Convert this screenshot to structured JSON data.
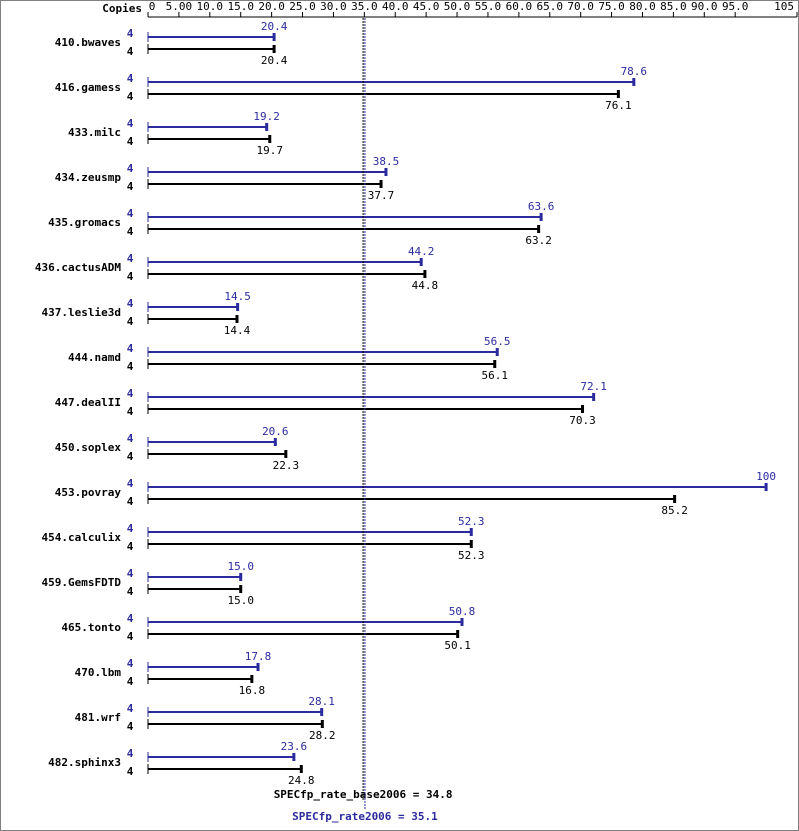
{
  "chart_data": {
    "type": "bar",
    "orientation": "horizontal",
    "x_label": "Copies",
    "categories": [
      "410.bwaves",
      "416.gamess",
      "433.milc",
      "434.zeusmp",
      "435.gromacs",
      "436.cactusADM",
      "437.leslie3d",
      "444.namd",
      "447.dealII",
      "450.soplex",
      "453.povray",
      "454.calculix",
      "459.GemsFDTD",
      "465.tonto",
      "470.lbm",
      "481.wrf",
      "482.sphinx3"
    ],
    "series": [
      {
        "name": "SPECfp_rate2006",
        "color": "#2b2b9e",
        "copies": [
          4,
          4,
          4,
          4,
          4,
          4,
          4,
          4,
          4,
          4,
          4,
          4,
          4,
          4,
          4,
          4,
          4
        ],
        "values": [
          20.4,
          78.6,
          19.2,
          38.5,
          63.6,
          44.2,
          14.5,
          56.5,
          72.1,
          20.6,
          100,
          52.3,
          15.0,
          50.8,
          17.8,
          28.1,
          23.6
        ],
        "value_labels": [
          "20.4",
          "78.6",
          "19.2",
          "38.5",
          "63.6",
          "44.2",
          "14.5",
          "56.5",
          "72.1",
          "20.6",
          "100",
          "52.3",
          "15.0",
          "50.8",
          "17.8",
          "28.1",
          "23.6"
        ]
      },
      {
        "name": "SPECfp_rate_base2006",
        "color": "#000000",
        "copies": [
          4,
          4,
          4,
          4,
          4,
          4,
          4,
          4,
          4,
          4,
          4,
          4,
          4,
          4,
          4,
          4,
          4
        ],
        "values": [
          20.4,
          76.1,
          19.7,
          37.7,
          63.2,
          44.8,
          14.4,
          56.1,
          70.3,
          22.3,
          85.2,
          52.3,
          15.0,
          50.1,
          16.8,
          28.2,
          24.8
        ],
        "value_labels": [
          "20.4",
          "76.1",
          "19.7",
          "37.7",
          "63.2",
          "44.8",
          "14.4",
          "56.1",
          "70.3",
          "22.3",
          "85.2",
          "52.3",
          "15.0",
          "50.1",
          "16.8",
          "28.2",
          "24.8"
        ]
      }
    ],
    "summary": [
      {
        "text": "SPECfp_rate_base2006 = 34.8",
        "value": 34.8,
        "color": "#000000"
      },
      {
        "text": "SPECfp_rate2006 = 35.1",
        "value": 35.1,
        "color": "#2b2b9e"
      }
    ],
    "xlim": [
      0,
      105
    ],
    "xticks": [
      0,
      {
        "value": 5,
        "label": "5.00"
      },
      {
        "value": 10,
        "label": "10.0"
      },
      {
        "value": 15,
        "label": "15.0"
      },
      {
        "value": 20,
        "label": "20.0"
      },
      {
        "value": 25,
        "label": "25.0"
      },
      {
        "value": 30,
        "label": "30.0"
      },
      {
        "value": 35,
        "label": "35.0"
      },
      {
        "value": 40,
        "label": "40.0"
      },
      {
        "value": 45,
        "label": "45.0"
      },
      {
        "value": 50,
        "label": "50.0"
      },
      {
        "value": 55,
        "label": "55.0"
      },
      {
        "value": 60,
        "label": "60.0"
      },
      {
        "value": 65,
        "label": "65.0"
      },
      {
        "value": 70,
        "label": "70.0"
      },
      {
        "value": 75,
        "label": "75.0"
      },
      {
        "value": 80,
        "label": "80.0"
      },
      {
        "value": 85,
        "label": "85.0"
      },
      {
        "value": 90,
        "label": "90.0"
      },
      {
        "value": 95,
        "label": "95.0"
      },
      105
    ]
  }
}
